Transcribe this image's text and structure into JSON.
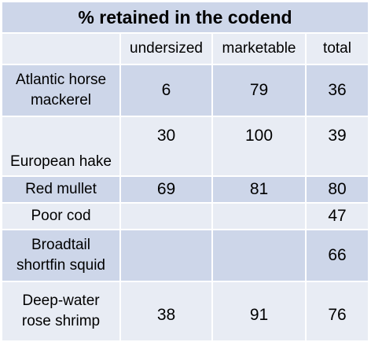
{
  "title": "% retained in the codend",
  "columns": [
    "",
    "undersized",
    "marketable",
    "total"
  ],
  "rows": [
    {
      "species_line1": "Atlantic horse",
      "species_line2": "mackerel",
      "undersized": "6",
      "marketable": "79",
      "total": "36"
    },
    {
      "species_line1": "European hake",
      "species_line2": "",
      "undersized": "30",
      "marketable": "100",
      "total": "39"
    },
    {
      "species_line1": "Red mullet",
      "species_line2": "",
      "undersized": "69",
      "marketable": "81",
      "total": "80"
    },
    {
      "species_line1": "Poor cod",
      "species_line2": "",
      "undersized": "",
      "marketable": "",
      "total": "47"
    },
    {
      "species_line1": "Broadtail",
      "species_line2": "shortfin squid",
      "undersized": "",
      "marketable": "",
      "total": "66"
    },
    {
      "species_line1": "Deep-water",
      "species_line2": "rose shrimp",
      "undersized": "38",
      "marketable": "91",
      "total": "76"
    }
  ],
  "colors": {
    "dark_band": "#cdd6e9",
    "light_band": "#e8ecf4",
    "grid_line": "#ffffff"
  }
}
